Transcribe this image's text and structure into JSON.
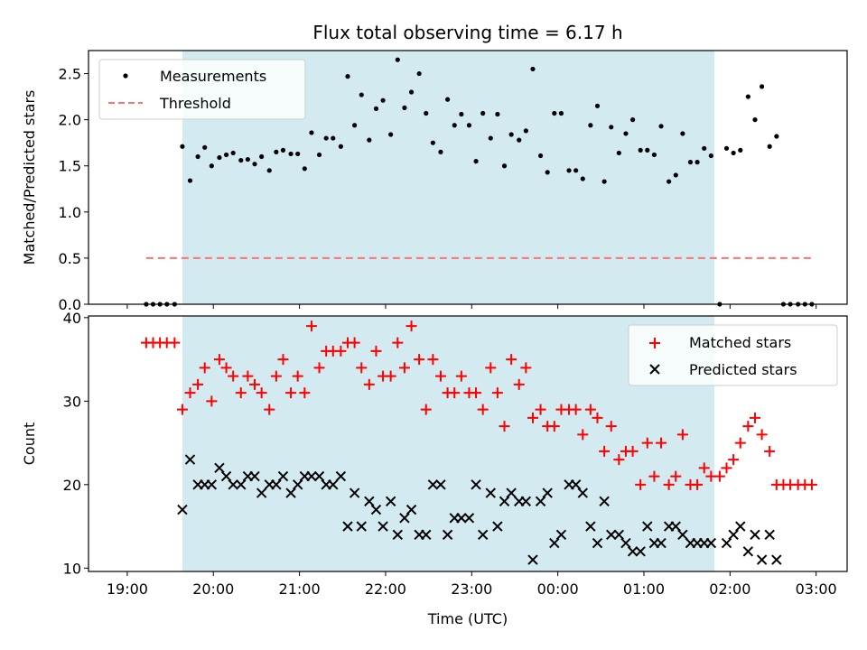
{
  "title": "Flux total observing time = 6.17 h",
  "chart_data": [
    {
      "type": "scatter",
      "ylabel": "Matched/Predicted stars",
      "ylim": [
        0,
        2.75
      ],
      "yticks": [
        0.0,
        0.5,
        1.0,
        1.5,
        2.0,
        2.5
      ],
      "ytick_labels": [
        "0.0",
        "0.5",
        "1.0",
        "1.5",
        "2.0",
        "2.5"
      ],
      "xlim": [
        18.55,
        27.36
      ],
      "shaded_span": [
        19.64,
        25.82
      ],
      "shaded_color": "#d3eaf0",
      "legend": {
        "placement": "upper-left",
        "entries": [
          "Measurements",
          "Threshold"
        ]
      },
      "series": [
        {
          "name": "Measurements",
          "marker": "dot",
          "color": "#000000",
          "x": [
            19.22,
            19.3,
            19.38,
            19.46,
            19.55,
            19.64,
            19.73,
            19.82,
            19.9,
            19.98,
            20.07,
            20.15,
            20.23,
            20.32,
            20.4,
            20.48,
            20.56,
            20.65,
            20.73,
            20.81,
            20.9,
            20.98,
            21.06,
            21.14,
            21.23,
            21.31,
            21.39,
            21.48,
            21.56,
            21.64,
            21.72,
            21.81,
            21.89,
            21.97,
            22.06,
            22.14,
            22.22,
            22.3,
            22.39,
            22.47,
            22.55,
            22.64,
            22.72,
            22.8,
            22.88,
            22.97,
            23.05,
            23.13,
            23.22,
            23.3,
            23.38,
            23.46,
            23.55,
            23.63,
            23.71,
            23.8,
            23.88,
            23.96,
            24.04,
            24.13,
            24.21,
            24.29,
            24.38,
            24.46,
            24.54,
            24.62,
            24.71,
            24.79,
            24.87,
            24.96,
            25.04,
            25.12,
            25.2,
            25.29,
            25.37,
            25.45,
            25.54,
            25.62,
            25.7,
            25.78,
            25.88,
            25.96,
            26.04,
            26.12,
            26.21,
            26.29,
            26.37,
            26.46,
            26.54,
            26.62,
            26.7,
            26.79,
            26.87,
            26.95
          ],
          "y": [
            0,
            0,
            0,
            0,
            0,
            1.71,
            1.34,
            1.6,
            1.7,
            1.5,
            1.59,
            1.62,
            1.64,
            1.56,
            1.57,
            1.52,
            1.6,
            1.45,
            1.65,
            1.67,
            1.63,
            1.63,
            1.47,
            1.86,
            1.62,
            1.8,
            1.8,
            1.71,
            2.47,
            1.94,
            2.27,
            1.78,
            2.12,
            2.21,
            1.84,
            2.65,
            2.13,
            2.3,
            2.5,
            2.07,
            1.75,
            1.65,
            2.22,
            1.94,
            2.06,
            1.94,
            1.55,
            2.07,
            1.8,
            2.06,
            1.5,
            1.84,
            1.78,
            1.88,
            2.55,
            1.61,
            1.43,
            2.07,
            2.07,
            1.45,
            1.45,
            1.36,
            1.94,
            2.15,
            1.33,
            1.92,
            1.64,
            1.85,
            2.0,
            1.67,
            1.67,
            1.62,
            1.93,
            1.33,
            1.4,
            1.85,
            1.54,
            1.54,
            1.69,
            1.61,
            0,
            1.69,
            1.64,
            1.67,
            2.25,
            2.0,
            2.36,
            1.71,
            1.82,
            0,
            0,
            0,
            0,
            0
          ]
        },
        {
          "name": "Threshold",
          "marker": "dashed-line",
          "color": "#ff7272",
          "x": [
            19.22,
            26.95
          ],
          "y": [
            0.5,
            0.5
          ]
        }
      ]
    },
    {
      "type": "scatter",
      "ylabel": "Count",
      "xlabel": "Time (UTC)",
      "ylim": [
        9.6,
        40.2
      ],
      "yticks": [
        10,
        20,
        30,
        40
      ],
      "ytick_labels": [
        "10",
        "20",
        "30",
        "40"
      ],
      "xlim": [
        18.55,
        27.36
      ],
      "xticks": [
        19,
        20,
        21,
        22,
        23,
        24,
        25,
        26,
        27
      ],
      "xtick_labels": [
        "19:00",
        "20:00",
        "21:00",
        "22:00",
        "23:00",
        "00:00",
        "01:00",
        "02:00",
        "03:00"
      ],
      "shaded_span": [
        19.64,
        25.82
      ],
      "shaded_color": "#d3eaf0",
      "legend": {
        "placement": "upper-right",
        "entries": [
          "Matched stars",
          "Predicted stars"
        ]
      },
      "series": [
        {
          "name": "Matched stars",
          "marker": "plus",
          "color": "#ff0000",
          "x": [
            19.22,
            19.3,
            19.38,
            19.46,
            19.55,
            19.64,
            19.73,
            19.82,
            19.9,
            19.98,
            20.07,
            20.15,
            20.23,
            20.32,
            20.4,
            20.48,
            20.56,
            20.65,
            20.73,
            20.81,
            20.9,
            20.98,
            21.06,
            21.14,
            21.23,
            21.31,
            21.39,
            21.48,
            21.56,
            21.64,
            21.72,
            21.81,
            21.89,
            21.97,
            22.06,
            22.14,
            22.22,
            22.3,
            22.39,
            22.47,
            22.55,
            22.64,
            22.72,
            22.8,
            22.88,
            22.97,
            23.05,
            23.13,
            23.22,
            23.3,
            23.38,
            23.46,
            23.55,
            23.63,
            23.71,
            23.8,
            23.88,
            23.96,
            24.04,
            24.13,
            24.21,
            24.29,
            24.38,
            24.46,
            24.54,
            24.62,
            24.71,
            24.79,
            24.87,
            24.96,
            25.04,
            25.12,
            25.2,
            25.29,
            25.37,
            25.45,
            25.54,
            25.62,
            25.7,
            25.78,
            25.88,
            25.96,
            26.04,
            26.12,
            26.21,
            26.29,
            26.37,
            26.46,
            26.54,
            26.62,
            26.7,
            26.79,
            26.87,
            26.95
          ],
          "y": [
            37,
            37,
            37,
            37,
            37,
            29,
            31,
            32,
            34,
            30,
            35,
            34,
            33,
            31,
            33,
            32,
            31,
            29,
            33,
            35,
            31,
            33,
            31,
            39,
            34,
            36,
            36,
            36,
            37,
            37,
            34,
            32,
            36,
            33,
            33,
            37,
            34,
            39,
            35,
            29,
            35,
            33,
            31,
            31,
            33,
            31,
            31,
            29,
            34,
            31,
            27,
            35,
            32,
            34,
            28,
            29,
            27,
            27,
            29,
            29,
            29,
            26,
            29,
            28,
            24,
            27,
            23,
            24,
            24,
            20,
            25,
            21,
            25,
            20,
            21,
            26,
            20,
            20,
            22,
            21,
            21,
            22,
            23,
            25,
            27,
            28,
            26,
            24,
            20,
            20,
            20,
            20,
            20,
            20
          ]
        },
        {
          "name": "Predicted stars",
          "marker": "x",
          "color": "#000000",
          "x": [
            19.64,
            19.73,
            19.82,
            19.9,
            19.98,
            20.07,
            20.15,
            20.23,
            20.32,
            20.4,
            20.48,
            20.56,
            20.65,
            20.73,
            20.81,
            20.9,
            20.98,
            21.06,
            21.14,
            21.23,
            21.31,
            21.39,
            21.48,
            21.56,
            21.64,
            21.72,
            21.81,
            21.89,
            21.97,
            22.06,
            22.14,
            22.22,
            22.3,
            22.39,
            22.47,
            22.55,
            22.64,
            22.72,
            22.8,
            22.88,
            22.97,
            23.05,
            23.13,
            23.22,
            23.3,
            23.38,
            23.46,
            23.55,
            23.63,
            23.71,
            23.8,
            23.88,
            23.96,
            24.04,
            24.13,
            24.21,
            24.29,
            24.38,
            24.46,
            24.54,
            24.62,
            24.71,
            24.79,
            24.87,
            24.96,
            25.04,
            25.12,
            25.2,
            25.29,
            25.37,
            25.45,
            25.54,
            25.62,
            25.7,
            25.78,
            25.96,
            26.04,
            26.12,
            26.21,
            26.29,
            26.37,
            26.46,
            26.54
          ],
          "y": [
            17,
            23,
            20,
            20,
            20,
            22,
            21,
            20,
            20,
            21,
            21,
            19,
            20,
            20,
            21,
            19,
            20,
            21,
            21,
            21,
            20,
            20,
            21,
            15,
            19,
            15,
            18,
            17,
            15,
            18,
            14,
            16,
            17,
            14,
            14,
            20,
            20,
            14,
            16,
            16,
            16,
            20,
            14,
            19,
            15,
            18,
            19,
            18,
            18,
            11,
            18,
            19,
            13,
            14,
            20,
            20,
            19,
            15,
            13,
            18,
            14,
            14,
            13,
            12,
            12,
            15,
            13,
            13,
            15,
            15,
            14,
            13,
            13,
            13,
            13,
            13,
            14,
            15,
            12,
            14,
            11,
            14,
            11
          ]
        }
      ]
    }
  ]
}
